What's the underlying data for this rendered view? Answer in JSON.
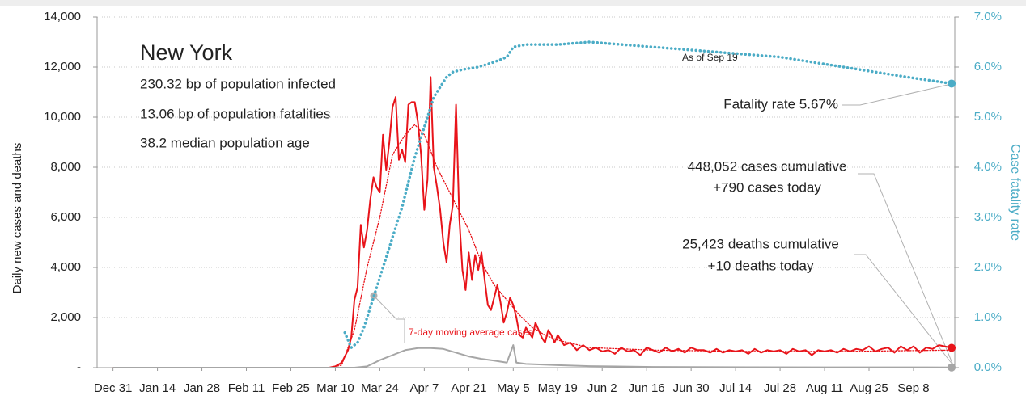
{
  "chart_data": {
    "type": "line",
    "y_label": "Daily new cases and deaths",
    "y2_label": "Case fatality rate",
    "xlim": [
      -5,
      265
    ],
    "xticks": [
      {
        "value": 0,
        "label": "Dec 31"
      },
      {
        "value": 14,
        "label": "Jan 14"
      },
      {
        "value": 28,
        "label": "Jan 28"
      },
      {
        "value": 42,
        "label": "Feb 11"
      },
      {
        "value": 56,
        "label": "Feb 25"
      },
      {
        "value": 70,
        "label": "Mar 10"
      },
      {
        "value": 84,
        "label": "Mar 24"
      },
      {
        "value": 98,
        "label": "Apr 7"
      },
      {
        "value": 112,
        "label": "Apr 21"
      },
      {
        "value": 126,
        "label": "May 5"
      },
      {
        "value": 140,
        "label": "May 19"
      },
      {
        "value": 154,
        "label": "Jun 2"
      },
      {
        "value": 168,
        "label": "Jun 16"
      },
      {
        "value": 182,
        "label": "Jun 30"
      },
      {
        "value": 196,
        "label": "Jul 14"
      },
      {
        "value": 210,
        "label": "Jul 28"
      },
      {
        "value": 224,
        "label": "Aug 11"
      },
      {
        "value": 238,
        "label": "Aug 25"
      },
      {
        "value": 252,
        "label": "Sep 8"
      }
    ],
    "ylim": [
      0,
      14000
    ],
    "yticks": [
      {
        "value": 0,
        "label": "-"
      },
      {
        "value": 2000,
        "label": "2,000"
      },
      {
        "value": 4000,
        "label": "4,000"
      },
      {
        "value": 6000,
        "label": "6,000"
      },
      {
        "value": 8000,
        "label": "8,000"
      },
      {
        "value": 10000,
        "label": "10,000"
      },
      {
        "value": 12000,
        "label": "12,000"
      },
      {
        "value": 14000,
        "label": "14,000"
      }
    ],
    "y2lim": [
      0,
      7
    ],
    "y2ticks": [
      {
        "value": 0,
        "label": "0.0%"
      },
      {
        "value": 1,
        "label": "1.0%"
      },
      {
        "value": 2,
        "label": "2.0%"
      },
      {
        "value": 3,
        "label": "3.0%"
      },
      {
        "value": 4,
        "label": "4.0%"
      },
      {
        "value": 5,
        "label": "5.0%"
      },
      {
        "value": 6,
        "label": "6.0%"
      },
      {
        "value": 7,
        "label": "7.0%"
      }
    ],
    "grid": true,
    "series": [
      {
        "color": "#e8141a",
        "style": "solid",
        "x": [
          0,
          68,
          70,
          72,
          74,
          75,
          76,
          77,
          78,
          79,
          80,
          81,
          82,
          83,
          84,
          85,
          86,
          87,
          88,
          89,
          90,
          91,
          92,
          93,
          94,
          95,
          96,
          97,
          98,
          99,
          100,
          101,
          102,
          103,
          104,
          105,
          106,
          107,
          108,
          109,
          110,
          111,
          112,
          113,
          114,
          115,
          116,
          117,
          118,
          119,
          120,
          121,
          122,
          123,
          124,
          125,
          126,
          127,
          128,
          129,
          130,
          131,
          132,
          133,
          134,
          135,
          136,
          137,
          138,
          139,
          140,
          142,
          144,
          146,
          148,
          150,
          152,
          154,
          156,
          158,
          160,
          162,
          164,
          166,
          168,
          170,
          172,
          174,
          176,
          178,
          180,
          182,
          184,
          186,
          188,
          190,
          192,
          194,
          196,
          198,
          200,
          202,
          204,
          206,
          208,
          210,
          212,
          214,
          216,
          218,
          220,
          222,
          224,
          226,
          228,
          230,
          232,
          234,
          236,
          238,
          240,
          242,
          244,
          246,
          248,
          250,
          252,
          254,
          256,
          258,
          260,
          264
        ],
        "values": [
          0,
          0,
          50,
          200,
          700,
          1200,
          2700,
          3200,
          5700,
          4800,
          5500,
          6700,
          7600,
          7200,
          7000,
          9300,
          7900,
          9000,
          10400,
          10800,
          8300,
          8700,
          8200,
          10500,
          10600,
          10600,
          9800,
          8500,
          6300,
          7500,
          11600,
          8000,
          7200,
          6300,
          5000,
          4200,
          5700,
          6500,
          10500,
          6000,
          3900,
          3100,
          4600,
          3500,
          4500,
          3900,
          4600,
          3500,
          2500,
          2300,
          2800,
          3300,
          2600,
          1800,
          2200,
          2800,
          2500,
          2000,
          1300,
          1200,
          1600,
          1400,
          1200,
          1800,
          1500,
          1200,
          1000,
          1500,
          1300,
          1000,
          1300,
          900,
          1000,
          700,
          900,
          700,
          800,
          650,
          700,
          550,
          800,
          650,
          700,
          500,
          800,
          700,
          600,
          800,
          650,
          750,
          600,
          800,
          700,
          700,
          600,
          750,
          600,
          700,
          650,
          700,
          550,
          750,
          600,
          700,
          650,
          700,
          550,
          750,
          650,
          700,
          500,
          700,
          650,
          700,
          600,
          750,
          650,
          750,
          700,
          850,
          650,
          750,
          800,
          600,
          850,
          700,
          850,
          600,
          800,
          750,
          900,
          790
        ]
      },
      {
        "color": "#e8141a",
        "style": "dotted",
        "x": [
          68,
          72,
          76,
          80,
          84,
          88,
          92,
          95,
          98,
          102,
          104,
          108,
          112,
          116,
          120,
          124,
          128,
          132,
          136,
          140,
          150,
          170,
          200,
          230,
          264
        ],
        "values": [
          0,
          100,
          1500,
          4000,
          6000,
          8500,
          9300,
          9700,
          9300,
          8000,
          7500,
          6500,
          5500,
          4200,
          3300,
          2700,
          2100,
          1600,
          1300,
          1100,
          800,
          700,
          650,
          650,
          700
        ]
      },
      {
        "color": "#a6a6a6",
        "style": "solid",
        "x": [
          0,
          76,
          80,
          84,
          88,
          92,
          96,
          100,
          104,
          108,
          112,
          116,
          120,
          124,
          126,
          127,
          130,
          140,
          150,
          170,
          200,
          264
        ],
        "values": [
          0,
          0,
          50,
          300,
          500,
          700,
          780,
          780,
          750,
          600,
          450,
          350,
          280,
          200,
          900,
          200,
          150,
          100,
          60,
          30,
          15,
          10
        ]
      },
      {
        "color": "#4bacc6",
        "style": "dotted",
        "axis": "y2",
        "x": [
          73,
          75,
          77,
          79,
          81,
          83,
          85,
          87,
          89,
          91,
          93,
          95,
          97,
          99,
          101,
          103,
          105,
          107,
          110,
          115,
          120,
          124,
          126,
          130,
          140,
          150,
          160,
          170,
          180,
          190,
          200,
          210,
          220,
          230,
          240,
          250,
          264
        ],
        "values": [
          0.7,
          0.4,
          0.5,
          0.8,
          1.2,
          1.6,
          2.0,
          2.4,
          2.8,
          3.2,
          3.7,
          4.2,
          4.6,
          5.0,
          5.4,
          5.6,
          5.8,
          5.9,
          5.95,
          6.0,
          6.1,
          6.2,
          6.4,
          6.45,
          6.45,
          6.5,
          6.45,
          6.4,
          6.35,
          6.3,
          6.25,
          6.2,
          6.1,
          6.0,
          5.9,
          5.8,
          5.67
        ]
      }
    ],
    "annotations": {
      "state": "New York",
      "infected": "230.32 bp of population infected",
      "fatalities": "13.06 bp of population fatalities",
      "age": "38.2 median population age",
      "as_of": "As of Sep 19",
      "fatality_rate": "Fatality rate 5.67%",
      "cases_cum": "448,052 cases cumulative",
      "cases_today": "+790 cases today",
      "deaths_cum": "25,423 deaths cumulative",
      "deaths_today": "+10 deaths today",
      "moving_avg": "7-day moving average cases"
    }
  }
}
